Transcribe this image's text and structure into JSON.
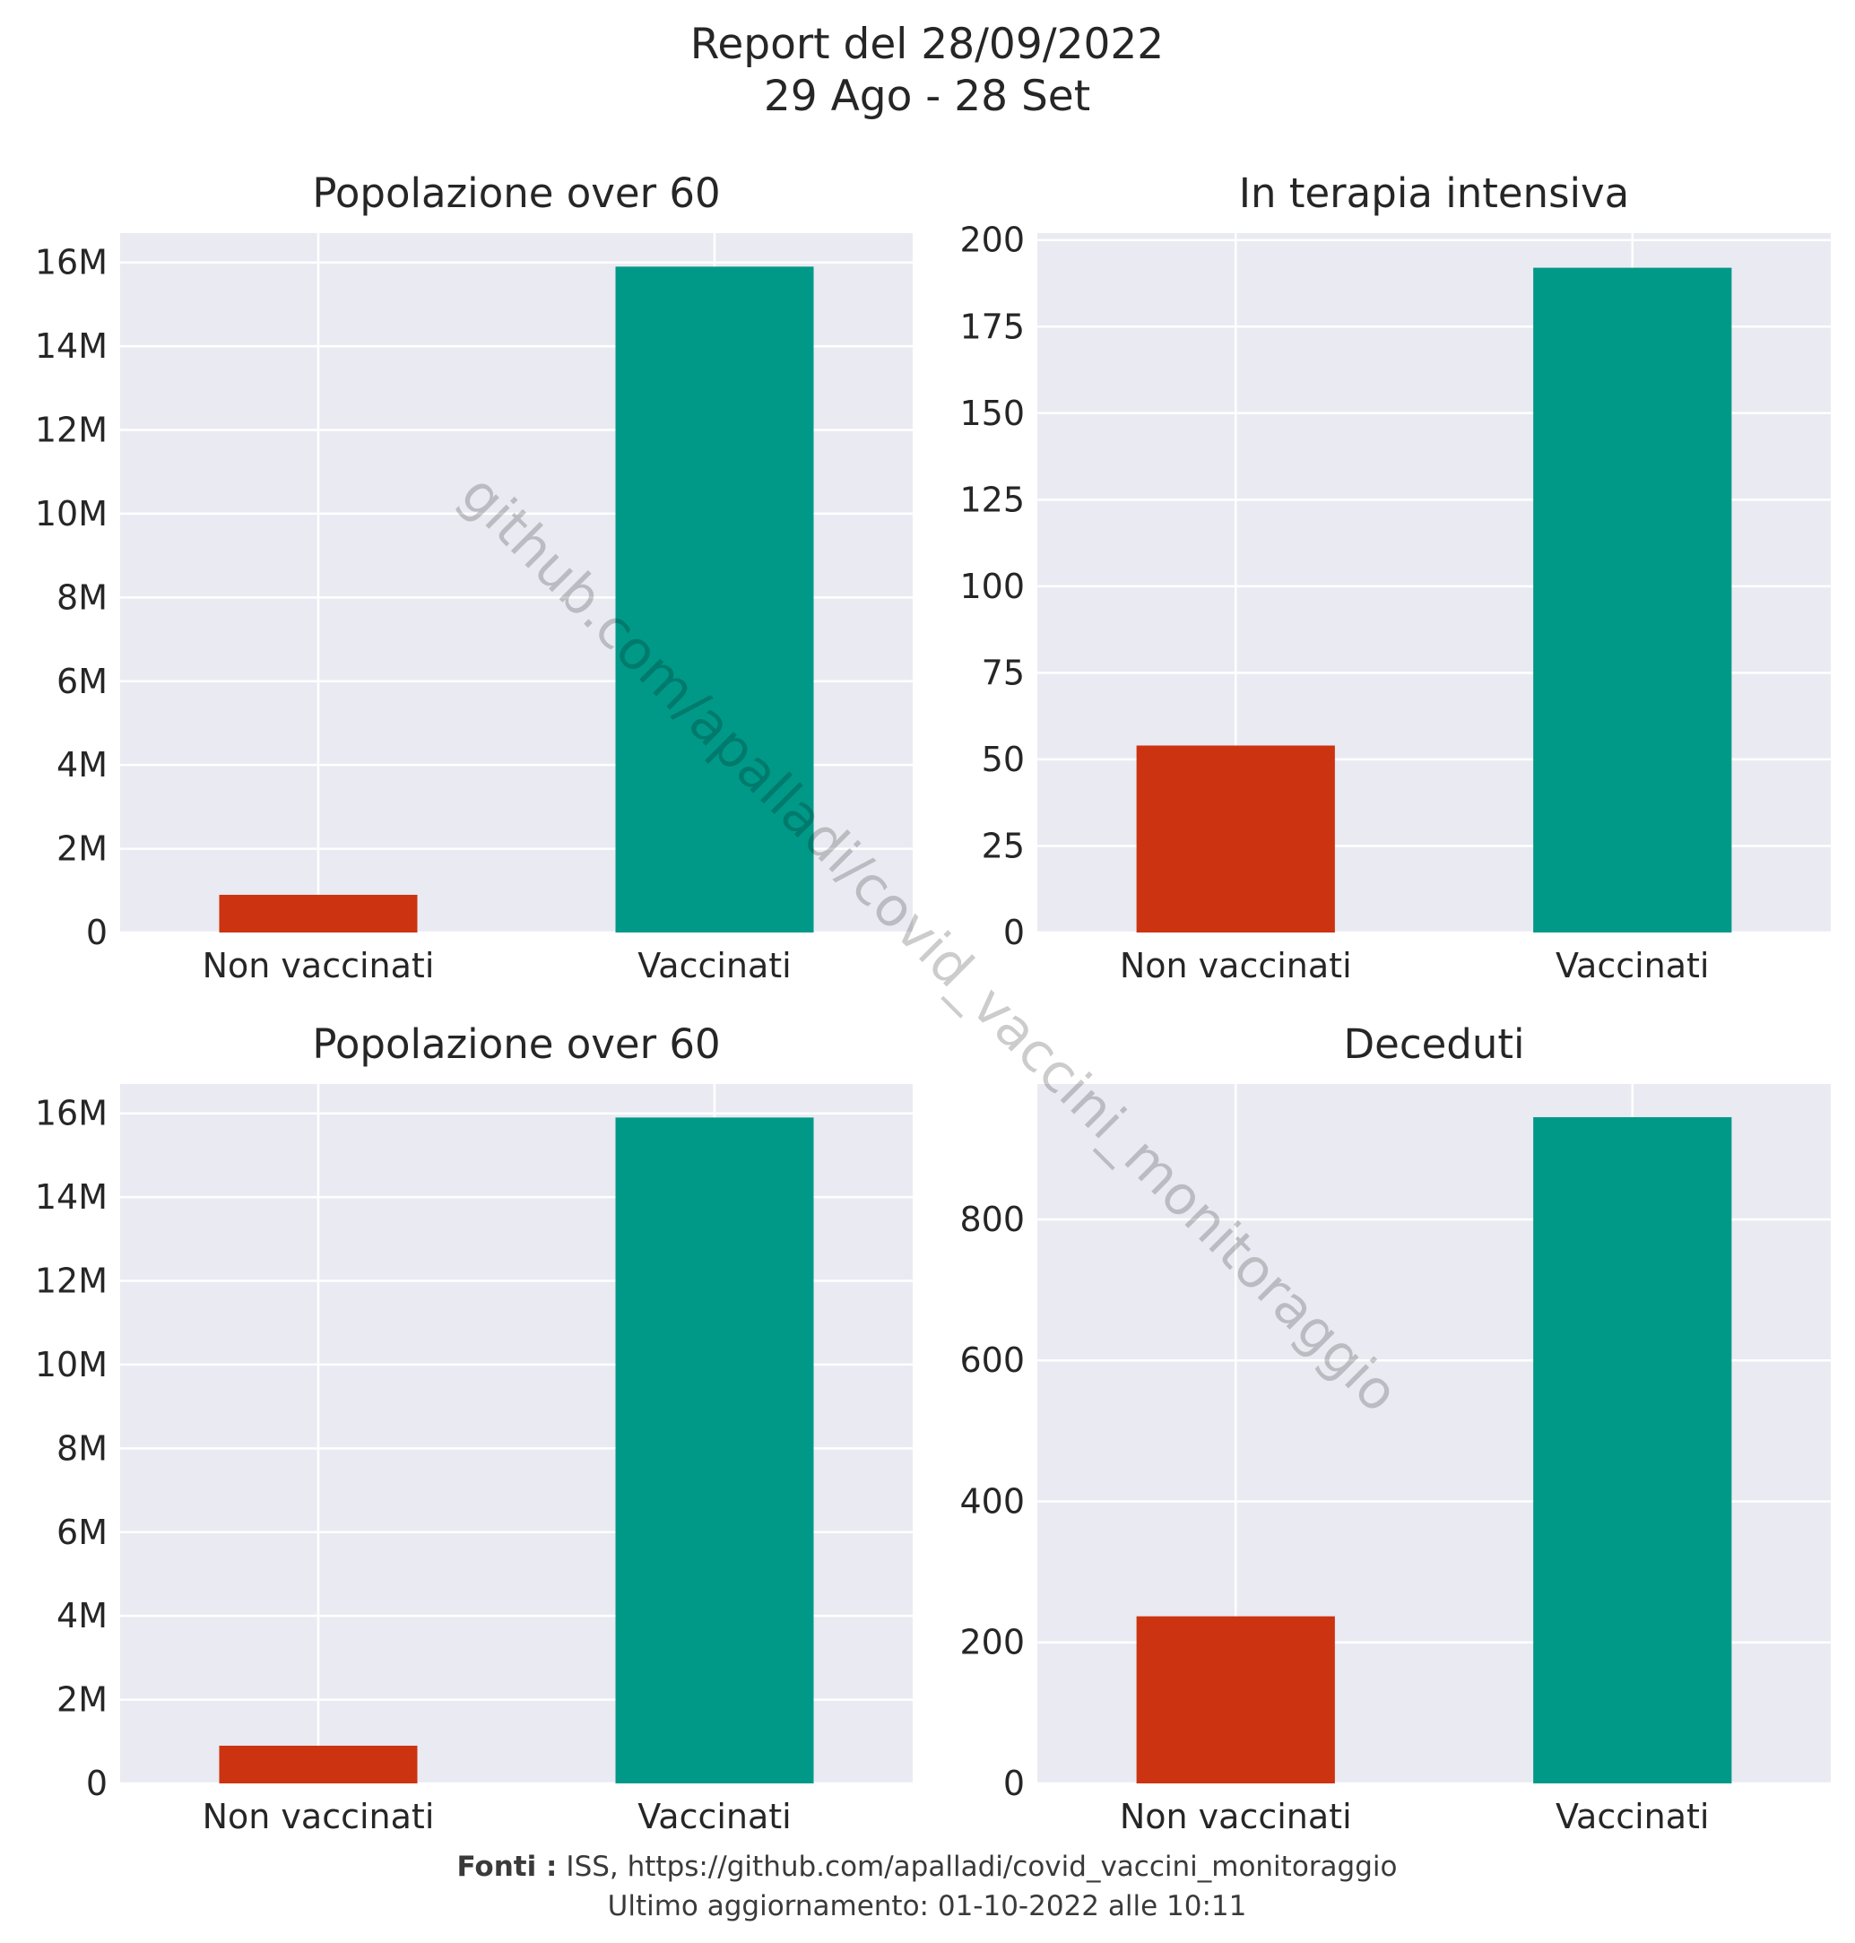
{
  "figure": {
    "title_line1": "Report del 28/09/2022",
    "title_line2": "29 Ago - 28 Set",
    "watermark": "github.com/apalladi/covid_vaccini_monitoraggio",
    "footer": {
      "source_label": "Fonti :",
      "source_text": "ISS, https://github.com/apalladi/covid_vaccini_monitoraggio",
      "updated": "Ultimo aggiornamento: 01-10-2022 alle 10:11"
    },
    "colors": {
      "non_vaccinati": "#cc3311",
      "vaccinati": "#009988",
      "panel_bg": "#eaeaf2",
      "grid": "#ffffff"
    }
  },
  "chart_data": [
    {
      "type": "bar",
      "title": "Popolazione over 60",
      "categories": [
        "Non vaccinati",
        "Vaccinati"
      ],
      "values": [
        900000,
        15900000
      ],
      "ylim": [
        0,
        16700000
      ],
      "yticks": [
        0,
        2000000,
        4000000,
        6000000,
        8000000,
        10000000,
        12000000,
        14000000,
        16000000
      ],
      "yticklabels": [
        "0",
        "2M",
        "4M",
        "6M",
        "8M",
        "10M",
        "12M",
        "14M",
        "16M"
      ],
      "grid": true
    },
    {
      "type": "bar",
      "title": "In terapia intensiva",
      "categories": [
        "Non vaccinati",
        "Vaccinati"
      ],
      "values": [
        54,
        192
      ],
      "ylim": [
        0,
        202
      ],
      "yticks": [
        0,
        25,
        50,
        75,
        100,
        125,
        150,
        175,
        200
      ],
      "yticklabels": [
        "0",
        "25",
        "50",
        "75",
        "100",
        "125",
        "150",
        "175",
        "200"
      ],
      "grid": true
    },
    {
      "type": "bar",
      "title": "Popolazione over 60",
      "categories": [
        "Non vaccinati",
        "Vaccinati"
      ],
      "values": [
        900000,
        15900000
      ],
      "ylim": [
        0,
        16700000
      ],
      "yticks": [
        0,
        2000000,
        4000000,
        6000000,
        8000000,
        10000000,
        12000000,
        14000000,
        16000000
      ],
      "yticklabels": [
        "0",
        "2M",
        "4M",
        "6M",
        "8M",
        "10M",
        "12M",
        "14M",
        "16M"
      ],
      "grid": true
    },
    {
      "type": "bar",
      "title": "Deceduti",
      "categories": [
        "Non vaccinati",
        "Vaccinati"
      ],
      "values": [
        237,
        945
      ],
      "ylim": [
        0,
        992
      ],
      "yticks": [
        0,
        200,
        400,
        600,
        800
      ],
      "yticklabels": [
        "0",
        "200",
        "400",
        "600",
        "800"
      ],
      "grid": true
    }
  ]
}
